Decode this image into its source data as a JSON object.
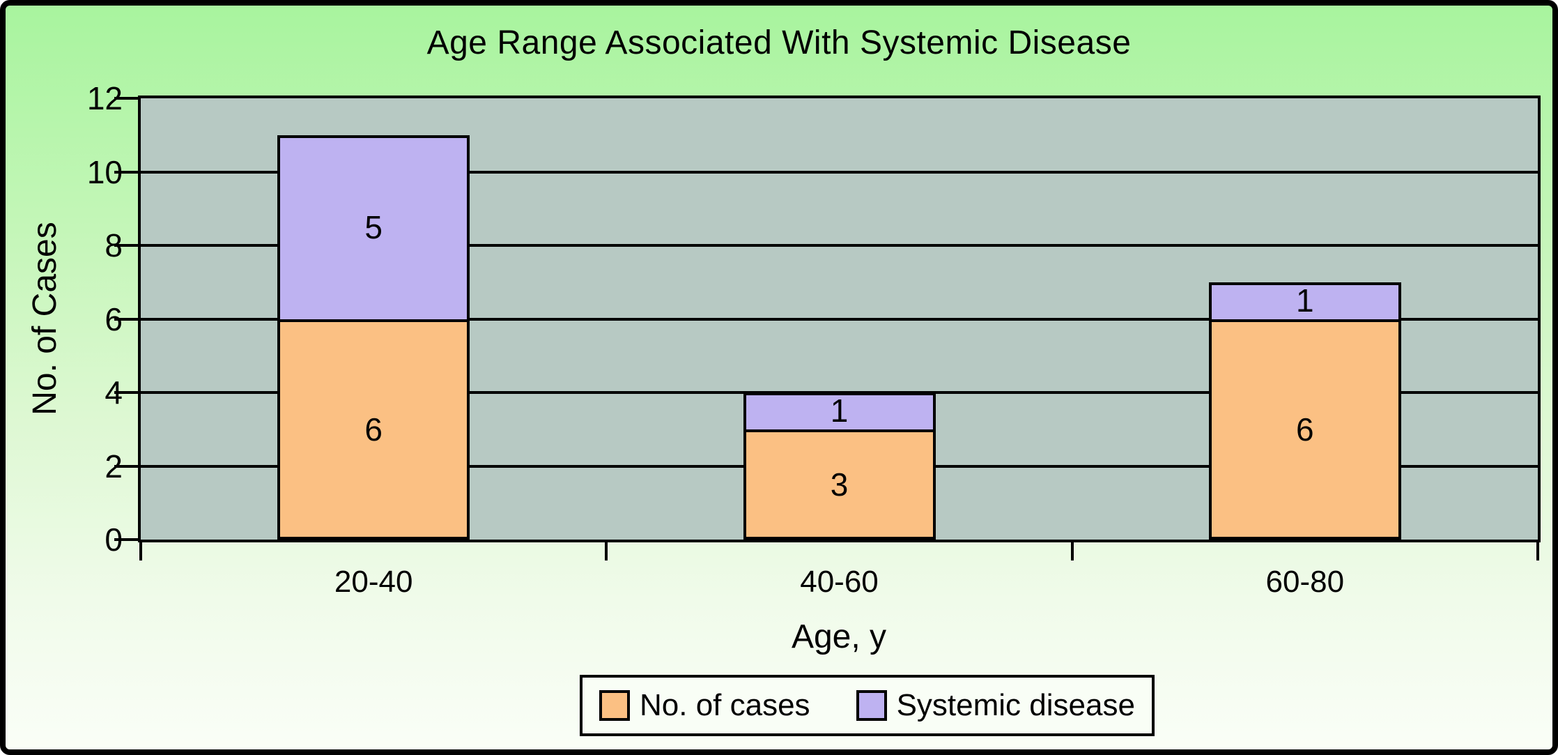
{
  "chart_data": {
    "type": "bar",
    "stacked": true,
    "title": "Age Range Associated With Systemic Disease",
    "xlabel": "Age, y",
    "ylabel": "No. of Cases",
    "categories": [
      "20-40",
      "40-60",
      "60-80"
    ],
    "series": [
      {
        "name": "No. of cases",
        "color": "#fbc083",
        "values": [
          6,
          3,
          6
        ]
      },
      {
        "name": "Systemic disease",
        "color": "#beb2f1",
        "values": [
          5,
          1,
          1
        ]
      }
    ],
    "totals": [
      11,
      4,
      7
    ],
    "data_labels": true,
    "ylim": [
      0,
      12
    ],
    "yticks": [
      0,
      2,
      4,
      6,
      8,
      10,
      12
    ],
    "grid": true,
    "legend_position": "bottom",
    "colors": {
      "plot_bg": "#b7c9c3",
      "axis_line": "#000000",
      "text": "#000000",
      "background_top": "#a8f49e",
      "background_bottom": "#fafef7",
      "legend_bg": "#f9fef6"
    }
  }
}
